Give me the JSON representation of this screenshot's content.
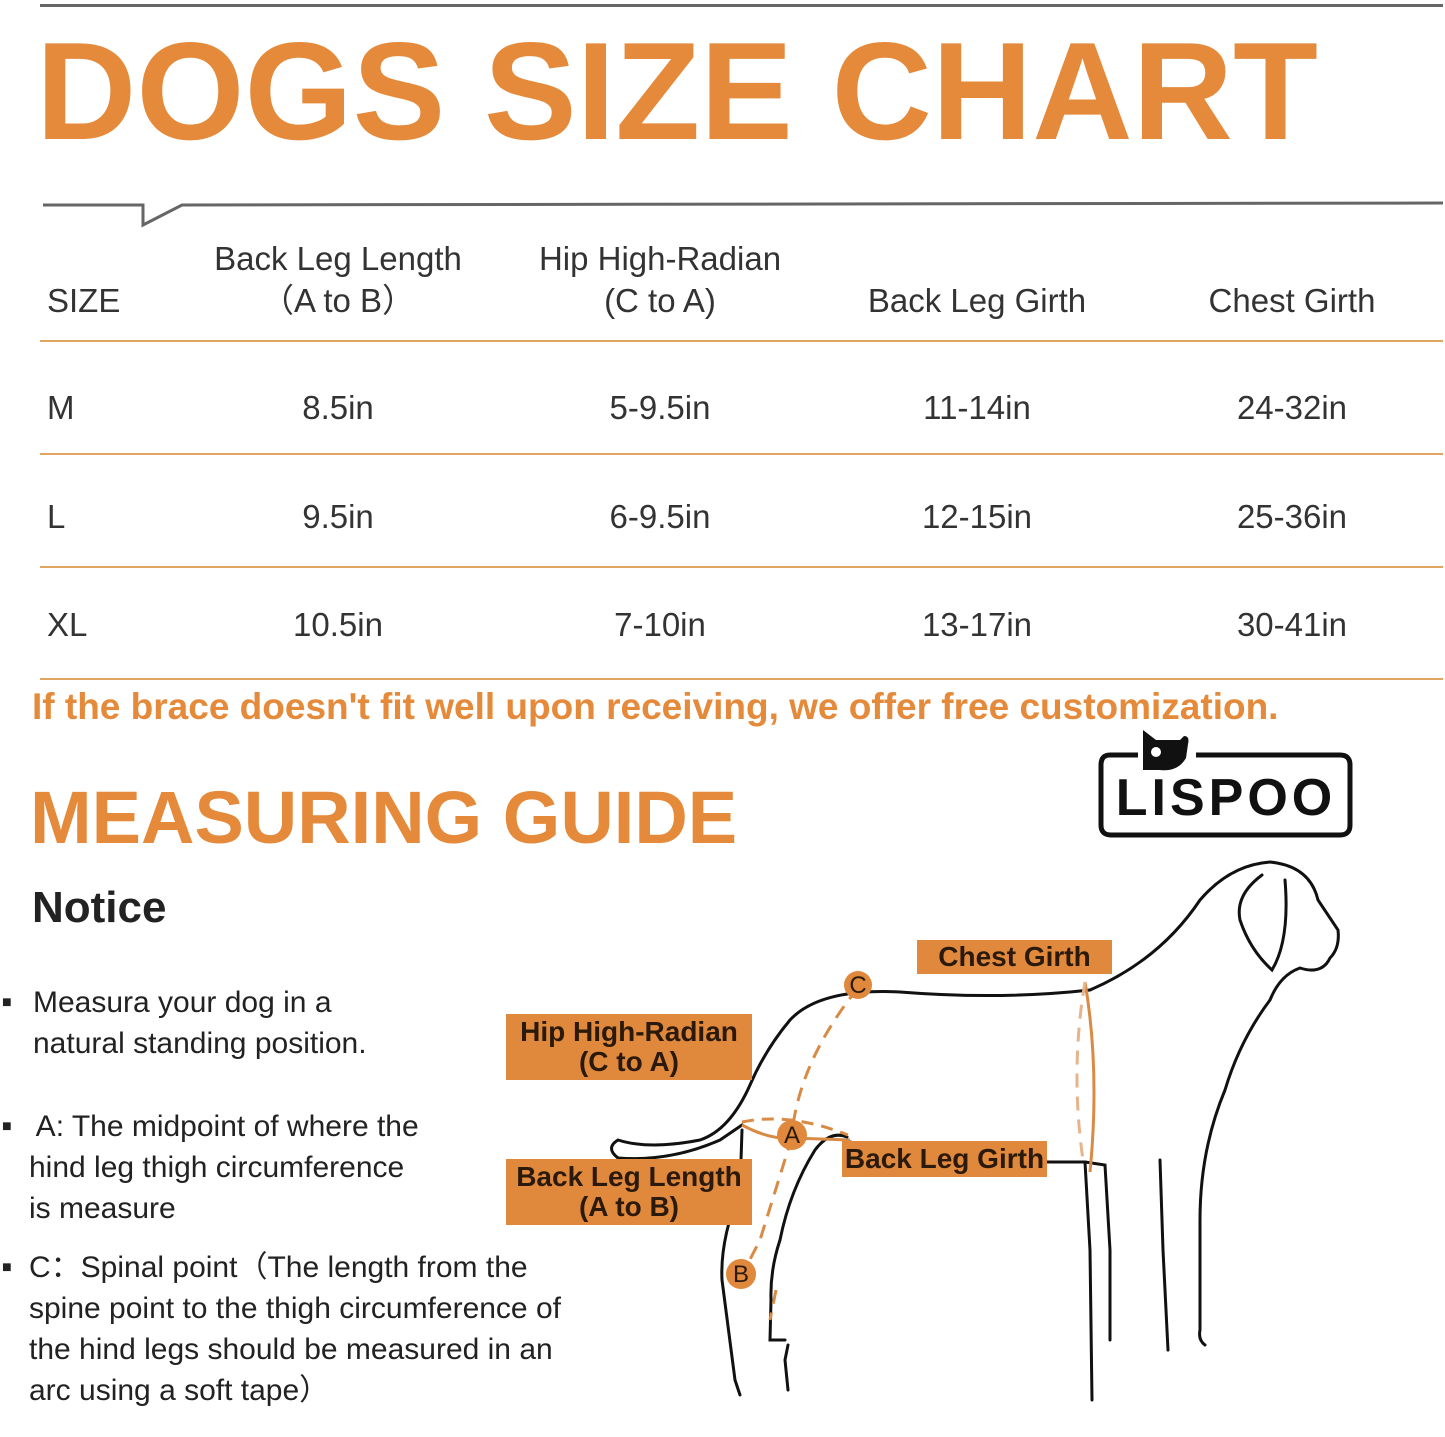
{
  "title": "DOGS SIZE CHART",
  "table": {
    "headers": [
      {
        "line1": "SIZE",
        "line2": ""
      },
      {
        "line1": "Back Leg Length",
        "line2": "（A to B）"
      },
      {
        "line1": "Hip High-Radian",
        "line2": "(C to A)"
      },
      {
        "line1": "Back Leg Girth",
        "line2": ""
      },
      {
        "line1": "Chest Girth",
        "line2": ""
      }
    ],
    "rows": [
      [
        "M",
        "8.5in",
        "5-9.5in",
        "11-14in",
        "24-32in"
      ],
      [
        "L",
        "9.5in",
        "6-9.5in",
        "12-15in",
        "25-36in"
      ],
      [
        "XL",
        "10.5in",
        "7-10in",
        "13-17in",
        "30-41in"
      ]
    ]
  },
  "customization_note": "If the brace doesn't fit well upon receiving, we offer free customization.",
  "brand_logo": "LISPOO",
  "measuring_guide": {
    "title": "MEASURING GUIDE",
    "notice_title": "Notice",
    "bullets": [
      [
        "Measura your dog in a",
        "natural standing position."
      ],
      [
        " A: The midpoint of where the",
        "hind leg thigh circumference",
        "is measure"
      ],
      [
        "C：Spinal point（The length from the",
        "spine point to the thigh circumference of",
        "the hind legs should be measured in an",
        "arc using a soft tape）"
      ]
    ]
  },
  "diagram": {
    "labels": {
      "chest_girth": "Chest Girth",
      "hip_line1": "Hip High-Radian",
      "hip_line2": "(C to A)",
      "back_leg_girth": "Back Leg Girth",
      "leg_length_line1": "Back Leg Length",
      "leg_length_line2": "(A to B)"
    },
    "points": [
      "A",
      "B",
      "C"
    ]
  },
  "colors": {
    "accent": "#E48A3A",
    "label_bg": "#E0883C",
    "rule": "#E0A463"
  }
}
